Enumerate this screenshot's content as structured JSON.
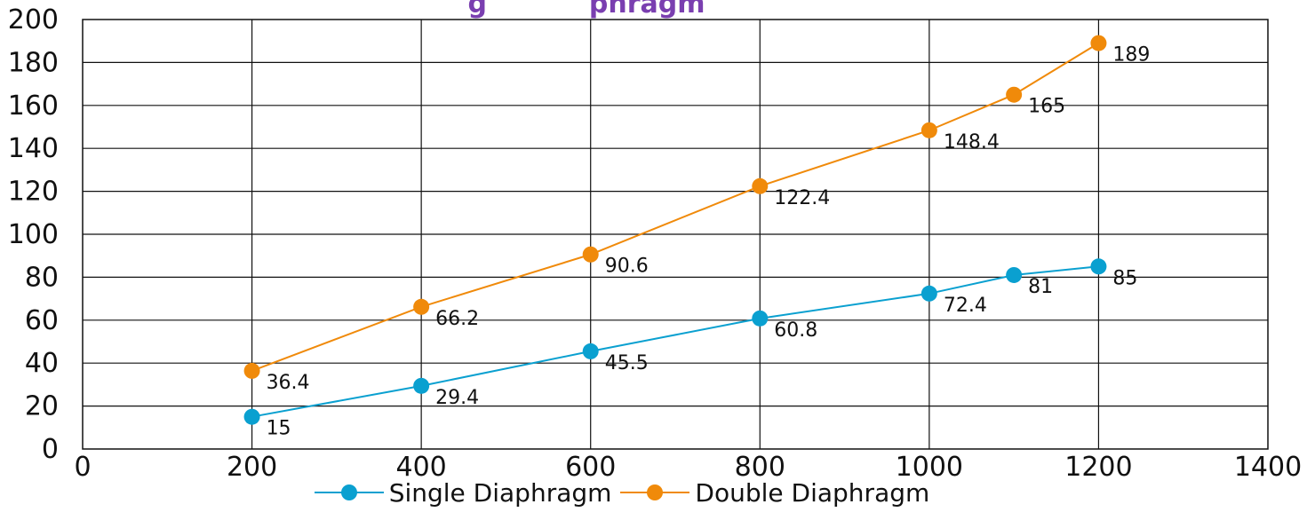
{
  "chart_data": {
    "type": "line",
    "title": "g           phragm",
    "xlabel": "",
    "ylabel": "",
    "xlim": [
      0,
      1400
    ],
    "ylim": [
      0,
      200
    ],
    "x_ticks": [
      "0",
      "200",
      "400",
      "600",
      "800",
      "1000",
      "1200",
      "1400"
    ],
    "y_ticks": [
      "0",
      "20",
      "40",
      "60",
      "80",
      "100",
      "120",
      "140",
      "160",
      "180",
      "200"
    ],
    "grid": true,
    "legend_position": "bottom",
    "series": [
      {
        "name": "Single Diaphragm",
        "color": "#0aa0d0",
        "x": [
          200,
          400,
          600,
          800,
          1000,
          1100,
          1200
        ],
        "values": [
          15,
          29.4,
          45.5,
          60.8,
          72.4,
          81,
          85
        ],
        "labels": [
          "15",
          "29.4",
          "45.5",
          "60.8",
          "72.4",
          "81",
          "85"
        ]
      },
      {
        "name": "Double Diaphragm",
        "color": "#f08a0a",
        "x": [
          200,
          400,
          600,
          800,
          1000,
          1100,
          1200
        ],
        "values": [
          36.4,
          66.2,
          90.6,
          122.4,
          148.4,
          165,
          189
        ],
        "labels": [
          "36.4",
          "66.2",
          "90.6",
          "122.4",
          "148.4",
          "165",
          "189"
        ]
      }
    ]
  }
}
